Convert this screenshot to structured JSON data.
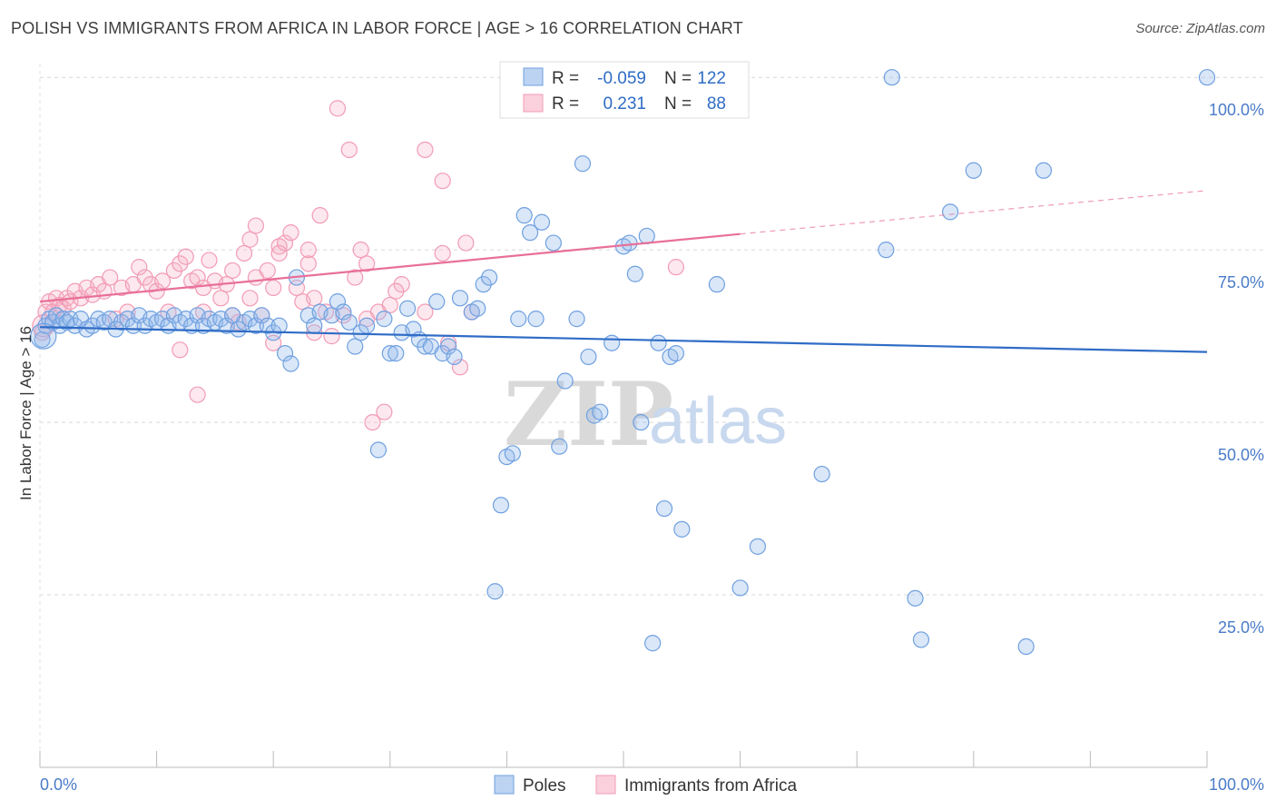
{
  "title": "POLISH VS IMMIGRANTS FROM AFRICA IN LABOR FORCE | AGE > 16 CORRELATION CHART",
  "source": "Source: ZipAtlas.com",
  "watermark": {
    "zip": "ZIP",
    "atlas": "atlas"
  },
  "colors": {
    "poles": "#6fa0e0",
    "poles_line": "#2f6cc6",
    "africa": "#f29bb5",
    "africa_line": "#e8709a",
    "grid": "#d8d8d8"
  },
  "legend": {
    "r_label": "R =",
    "n_label": "N =",
    "series": [
      {
        "r": "-0.059",
        "n": "122"
      },
      {
        "r": "0.231",
        "n": "88"
      }
    ]
  },
  "bottom_legend": [
    "Poles",
    "Immigrants from Africa"
  ],
  "chart_data": {
    "type": "scatter",
    "ylabel": "In Labor Force | Age > 16",
    "xlim": [
      0,
      100
    ],
    "ylim": [
      0,
      102
    ],
    "x_tick_labels": [
      "0.0%",
      "100.0%"
    ],
    "y_ticks": [
      25,
      50,
      75,
      100
    ],
    "y_tick_labels": [
      "25.0%",
      "50.0%",
      "75.0%",
      "100.0%"
    ],
    "grid": "horizontal dashed",
    "series": [
      {
        "name": "Poles",
        "trend": {
          "x": [
            0,
            100
          ],
          "y": [
            63.8,
            60.2
          ]
        },
        "points": [
          [
            0.2,
            62
          ],
          [
            0.5,
            64
          ],
          [
            0.8,
            65
          ],
          [
            1.1,
            64.5
          ],
          [
            1.4,
            65.5
          ],
          [
            1.7,
            64
          ],
          [
            2,
            65
          ],
          [
            2.3,
            64.5
          ],
          [
            2.6,
            65
          ],
          [
            3,
            64
          ],
          [
            3.5,
            65
          ],
          [
            4,
            63.5
          ],
          [
            4.5,
            64
          ],
          [
            5,
            65
          ],
          [
            5.5,
            64.5
          ],
          [
            6,
            65
          ],
          [
            6.5,
            63.5
          ],
          [
            7,
            64.5
          ],
          [
            7.5,
            65
          ],
          [
            8,
            64
          ],
          [
            8.5,
            65.5
          ],
          [
            9,
            64
          ],
          [
            9.5,
            65
          ],
          [
            10,
            64.5
          ],
          [
            10.5,
            65
          ],
          [
            11,
            64
          ],
          [
            11.5,
            65.5
          ],
          [
            12,
            64.5
          ],
          [
            12.5,
            65
          ],
          [
            13,
            64
          ],
          [
            13.5,
            65.5
          ],
          [
            14,
            64
          ],
          [
            14.5,
            65
          ],
          [
            15,
            64.5
          ],
          [
            15.5,
            65
          ],
          [
            16,
            64
          ],
          [
            16.5,
            65.5
          ],
          [
            17,
            63.5
          ],
          [
            17.5,
            64.5
          ],
          [
            18,
            65
          ],
          [
            18.5,
            64
          ],
          [
            19,
            65.5
          ],
          [
            19.5,
            64
          ],
          [
            20,
            63
          ],
          [
            20.5,
            64
          ],
          [
            21,
            60
          ],
          [
            21.5,
            58.5
          ],
          [
            22,
            71
          ],
          [
            23,
            65.5
          ],
          [
            23.5,
            64
          ],
          [
            24,
            66
          ],
          [
            25,
            65.5
          ],
          [
            25.5,
            67.5
          ],
          [
            26,
            66
          ],
          [
            26.5,
            64.5
          ],
          [
            27,
            61
          ],
          [
            27.5,
            63
          ],
          [
            28,
            64
          ],
          [
            29,
            46
          ],
          [
            29.5,
            65
          ],
          [
            30,
            60
          ],
          [
            30.5,
            60
          ],
          [
            31,
            63
          ],
          [
            31.5,
            66.5
          ],
          [
            32,
            63.5
          ],
          [
            32.5,
            62
          ],
          [
            33,
            61
          ],
          [
            33.5,
            61
          ],
          [
            34,
            67.5
          ],
          [
            34.5,
            60
          ],
          [
            35,
            61
          ],
          [
            35.5,
            59.5
          ],
          [
            36,
            68
          ],
          [
            37,
            66
          ],
          [
            37.5,
            66.5
          ],
          [
            38,
            70
          ],
          [
            38.5,
            71
          ],
          [
            39,
            25.5
          ],
          [
            39.5,
            38
          ],
          [
            40,
            45
          ],
          [
            40.5,
            45.5
          ],
          [
            41,
            65
          ],
          [
            41.5,
            80
          ],
          [
            42,
            77.5
          ],
          [
            42.5,
            65
          ],
          [
            43,
            79
          ],
          [
            44,
            76
          ],
          [
            44.5,
            46.5
          ],
          [
            45,
            56
          ],
          [
            46,
            65
          ],
          [
            46.5,
            87.5
          ],
          [
            47,
            59.5
          ],
          [
            47.5,
            51
          ],
          [
            48,
            51.5
          ],
          [
            49,
            61.5
          ],
          [
            50,
            75.5
          ],
          [
            50.5,
            76
          ],
          [
            51,
            71.5
          ],
          [
            51.5,
            50
          ],
          [
            52,
            77
          ],
          [
            52.5,
            18
          ],
          [
            53,
            61.5
          ],
          [
            53.5,
            37.5
          ],
          [
            54,
            59.5
          ],
          [
            54.5,
            60
          ],
          [
            55,
            34.5
          ],
          [
            58,
            70
          ],
          [
            60,
            26
          ],
          [
            61.5,
            32
          ],
          [
            67,
            42.5
          ],
          [
            72.5,
            75
          ],
          [
            73,
            100
          ],
          [
            75,
            24.5
          ],
          [
            75.5,
            18.5
          ],
          [
            78,
            80.5
          ],
          [
            80,
            86.5
          ],
          [
            84.5,
            17.5
          ],
          [
            86,
            86.5
          ],
          [
            100,
            100
          ]
        ]
      },
      {
        "name": "Immigrants from Africa",
        "trend": {
          "x": [
            0,
            60
          ],
          "y": [
            67.5,
            77.3
          ]
        },
        "trend_dashed": {
          "x": [
            60,
            100
          ],
          "y": [
            77.3,
            83.6
          ]
        },
        "points": [
          [
            0.2,
            63
          ],
          [
            0.5,
            66
          ],
          [
            0.8,
            67.5
          ],
          [
            1.1,
            66
          ],
          [
            1.4,
            68
          ],
          [
            1.7,
            67
          ],
          [
            2,
            66.5
          ],
          [
            2.3,
            68
          ],
          [
            2.6,
            67.5
          ],
          [
            3,
            69
          ],
          [
            3.5,
            68
          ],
          [
            4,
            69.5
          ],
          [
            4.5,
            68.5
          ],
          [
            5,
            70
          ],
          [
            5.5,
            69
          ],
          [
            6,
            71
          ],
          [
            6.5,
            65
          ],
          [
            7,
            69.5
          ],
          [
            7.5,
            66
          ],
          [
            8,
            70
          ],
          [
            8.5,
            72.5
          ],
          [
            9,
            71
          ],
          [
            9.5,
            70
          ],
          [
            10,
            69
          ],
          [
            10.5,
            70.5
          ],
          [
            11,
            66
          ],
          [
            11.5,
            72
          ],
          [
            12,
            73
          ],
          [
            12.5,
            74
          ],
          [
            13,
            70.5
          ],
          [
            13.5,
            71
          ],
          [
            14,
            69.5
          ],
          [
            14.5,
            73.5
          ],
          [
            15,
            70.5
          ],
          [
            15.5,
            68
          ],
          [
            16,
            70
          ],
          [
            16.5,
            65.5
          ],
          [
            17,
            64.5
          ],
          [
            17.5,
            74.5
          ],
          [
            18,
            68
          ],
          [
            18.5,
            71
          ],
          [
            19,
            65.5
          ],
          [
            19.5,
            72
          ],
          [
            20,
            69.5
          ],
          [
            20.5,
            75.5
          ],
          [
            21,
            76
          ],
          [
            21.5,
            77.5
          ],
          [
            22,
            69.5
          ],
          [
            22.5,
            67.5
          ],
          [
            23,
            73
          ],
          [
            23.5,
            68
          ],
          [
            24,
            80
          ],
          [
            24.5,
            66
          ],
          [
            25,
            62.5
          ],
          [
            25.5,
            95.5
          ],
          [
            26,
            65.5
          ],
          [
            26.5,
            89.5
          ],
          [
            27,
            71
          ],
          [
            27.5,
            75
          ],
          [
            28,
            73
          ],
          [
            28.5,
            50
          ],
          [
            29,
            66
          ],
          [
            29.5,
            51.5
          ],
          [
            30,
            67
          ],
          [
            31,
            70
          ],
          [
            33,
            89.5
          ],
          [
            34.5,
            85
          ],
          [
            34.5,
            74.5
          ],
          [
            35,
            61.5
          ],
          [
            36,
            58
          ],
          [
            36.5,
            76
          ],
          [
            37,
            66
          ],
          [
            13.5,
            54
          ],
          [
            14,
            66
          ],
          [
            18,
            76.5
          ],
          [
            18.5,
            78.5
          ],
          [
            20.5,
            74.5
          ],
          [
            23,
            75
          ],
          [
            23.5,
            63
          ],
          [
            28,
            65
          ],
          [
            30.5,
            69
          ],
          [
            33,
            66
          ],
          [
            20,
            61.5
          ],
          [
            12,
            60.5
          ],
          [
            16.5,
            72
          ],
          [
            54.5,
            72.5
          ]
        ]
      }
    ]
  }
}
